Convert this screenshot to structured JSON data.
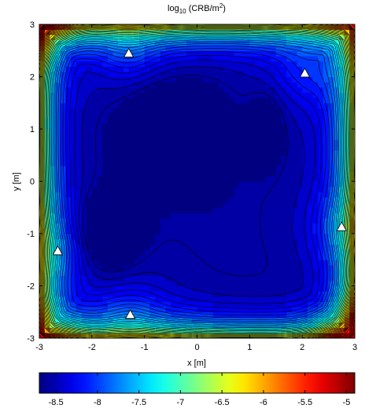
{
  "chart_data": {
    "type": "heatmap",
    "title_main": "log",
    "title_sub": "10",
    "title_rest": " (CRB/m",
    "title_sup": "2",
    "title_close": ")",
    "xlabel": "x [m]",
    "ylabel": "y [m]",
    "xlim": [
      -3,
      3
    ],
    "ylim": [
      -3,
      3
    ],
    "xticks": [
      -3,
      -2,
      -1,
      0,
      1,
      2,
      3
    ],
    "yticks": [
      -3,
      -2,
      -1,
      0,
      1,
      2,
      3
    ],
    "colorbar": {
      "range": [
        -8.7,
        -4.9
      ],
      "ticks": [
        -8.5,
        -8,
        -7.5,
        -7,
        -6.5,
        -6,
        -5.5,
        -5
      ],
      "colormap": "jet"
    },
    "sensors": [
      {
        "x": -1.3,
        "y": 2.45
      },
      {
        "x": 2.05,
        "y": 2.07
      },
      {
        "x": 2.75,
        "y": -0.87
      },
      {
        "x": -1.27,
        "y": -2.55
      },
      {
        "x": -2.65,
        "y": -1.33
      }
    ]
  },
  "colors": {
    "marker": "#ffffff",
    "contour": "#000000"
  }
}
